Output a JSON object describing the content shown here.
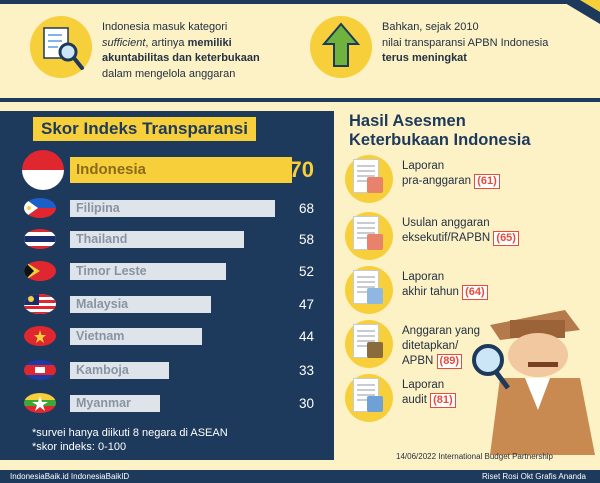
{
  "info1": {
    "line1": "Indonesia masuk kategori",
    "italic": "sufficient",
    "line2_mid": ", artinya ",
    "bold1": "memiliki",
    "bold2": "akuntabilitas dan keterbukaan",
    "line3": "dalam mengelola anggaran"
  },
  "info2": {
    "line1": "Bahkan, sejak 2010",
    "line2": "nilai transparansi APBN Indonesia",
    "bold": "terus meningkat"
  },
  "panel": {
    "title": "Skor Indeks Transparansi",
    "rows": [
      {
        "country": "Indonesia",
        "score": "70",
        "value": 70
      },
      {
        "country": "Filipina",
        "score": "68",
        "value": 68
      },
      {
        "country": "Thailand",
        "score": "58",
        "value": 58
      },
      {
        "country": "Timor Leste",
        "score": "52",
        "value": 52
      },
      {
        "country": "Malaysia",
        "score": "47",
        "value": 47
      },
      {
        "country": "Vietnam",
        "score": "44",
        "value": 44
      },
      {
        "country": "Kamboja",
        "score": "33",
        "value": 33
      },
      {
        "country": "Myanmar",
        "score": "30",
        "value": 30
      }
    ],
    "note1": "*survei hanya diikuti 8 negara di ASEAN",
    "note2": "*skor indeks: 0-100"
  },
  "assessment": {
    "title1": "Hasil Asesmen",
    "title2": "Keterbukaan Indonesia",
    "items": [
      {
        "l1": "Laporan",
        "l2": "pra-anggaran",
        "l3": "",
        "score": "(61)"
      },
      {
        "l1": "Usulan anggaran",
        "l2": "eksekutif/RAPBN",
        "l3": "",
        "score": "(65)"
      },
      {
        "l1": "Laporan",
        "l2": "akhir tahun",
        "l3": "",
        "score": "(64)"
      },
      {
        "l1": "Anggaran yang",
        "l2": "ditetapkan/",
        "l3": "APBN",
        "score": "(89)"
      },
      {
        "l1": "Laporan",
        "l2": "audit",
        "l3": "",
        "score": "(81)"
      }
    ]
  },
  "source": "14/06/2022  International Budget Partnership",
  "footer": {
    "left": "IndonesiaBaik.id   IndonesiaBaikID",
    "right": "Riset Rosi Okt   Grafis Ananda"
  },
  "colors": {
    "navy": "#1d3a5c",
    "yellow": "#f7cf3a",
    "cream": "#fdf1c6",
    "red": "#e64b3b"
  }
}
